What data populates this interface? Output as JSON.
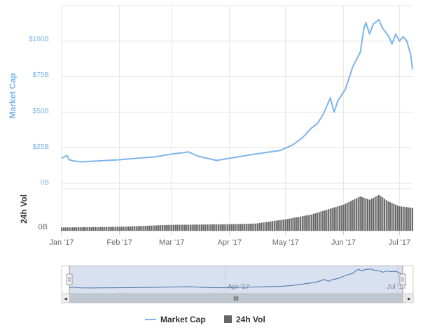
{
  "chart_data": {
    "type": "area",
    "title": "",
    "panes": {
      "market_cap": {
        "ylabel": "Market Cap",
        "yticks": [
          "0B",
          "$25B",
          "$50B",
          "$75B",
          "$100B"
        ],
        "ylim": [
          0,
          125
        ],
        "unit": "B USD",
        "color": "#7cb5ec"
      },
      "volume": {
        "ylabel": "24h Vol",
        "yticks": [
          "0B"
        ],
        "color": "#666666"
      }
    },
    "x_tick_labels": [
      "Jan '17",
      "Feb '17",
      "Mar '17",
      "Apr '17",
      "May '17",
      "Jun '17",
      "Jul '17"
    ],
    "x_tick_dates": [
      "2017-01-01",
      "2017-02-01",
      "2017-03-01",
      "2017-04-01",
      "2017-05-01",
      "2017-06-01",
      "2017-07-01"
    ],
    "xlim": [
      "2017-01-01",
      "2017-07-08"
    ],
    "series": [
      {
        "name": "Market Cap",
        "kind": "line",
        "points": [
          [
            "2017-01-01",
            17.5
          ],
          [
            "2017-01-04",
            19.5
          ],
          [
            "2017-01-05",
            16.5
          ],
          [
            "2017-01-08",
            15.5
          ],
          [
            "2017-01-12",
            15.0
          ],
          [
            "2017-01-18",
            15.5
          ],
          [
            "2017-01-25",
            16.0
          ],
          [
            "2017-02-01",
            16.5
          ],
          [
            "2017-02-10",
            17.5
          ],
          [
            "2017-02-20",
            18.5
          ],
          [
            "2017-03-01",
            20.5
          ],
          [
            "2017-03-10",
            22.0
          ],
          [
            "2017-03-15",
            19.0
          ],
          [
            "2017-03-20",
            17.5
          ],
          [
            "2017-03-25",
            16.0
          ],
          [
            "2017-04-01",
            17.5
          ],
          [
            "2017-04-10",
            19.5
          ],
          [
            "2017-04-20",
            21.5
          ],
          [
            "2017-04-28",
            23.0
          ],
          [
            "2017-05-05",
            27.0
          ],
          [
            "2017-05-10",
            32.0
          ],
          [
            "2017-05-15",
            39.0
          ],
          [
            "2017-05-18",
            42.0
          ],
          [
            "2017-05-21",
            48.0
          ],
          [
            "2017-05-25",
            60.0
          ],
          [
            "2017-05-27",
            50.0
          ],
          [
            "2017-05-29",
            58.0
          ],
          [
            "2017-06-02",
            66.0
          ],
          [
            "2017-06-06",
            82.0
          ],
          [
            "2017-06-10",
            92.0
          ],
          [
            "2017-06-12",
            109.0
          ],
          [
            "2017-06-13",
            113.0
          ],
          [
            "2017-06-15",
            105.0
          ],
          [
            "2017-06-17",
            112.0
          ],
          [
            "2017-06-20",
            115.0
          ],
          [
            "2017-06-22",
            109.0
          ],
          [
            "2017-06-25",
            104.0
          ],
          [
            "2017-06-27",
            98.0
          ],
          [
            "2017-06-29",
            105.0
          ],
          [
            "2017-07-01",
            100.0
          ],
          [
            "2017-07-03",
            103.0
          ],
          [
            "2017-07-05",
            100.0
          ],
          [
            "2017-07-06",
            95.0
          ],
          [
            "2017-07-07",
            91.0
          ],
          [
            "2017-07-08",
            80.0
          ]
        ]
      },
      {
        "name": "24h Vol",
        "kind": "column",
        "points": [
          [
            "2017-01-01",
            0.1
          ],
          [
            "2017-02-01",
            0.12
          ],
          [
            "2017-03-01",
            0.18
          ],
          [
            "2017-04-01",
            0.2
          ],
          [
            "2017-04-15",
            0.22
          ],
          [
            "2017-05-01",
            0.35
          ],
          [
            "2017-05-15",
            0.5
          ],
          [
            "2017-06-01",
            0.8
          ],
          [
            "2017-06-10",
            1.05
          ],
          [
            "2017-06-15",
            0.95
          ],
          [
            "2017-06-20",
            1.1
          ],
          [
            "2017-06-25",
            0.9
          ],
          [
            "2017-07-01",
            0.75
          ],
          [
            "2017-07-08",
            0.7
          ]
        ]
      }
    ],
    "navigator": {
      "tick_labels": [
        "Apr '17",
        "Jul '17"
      ],
      "tick_dates": [
        "2017-04-01",
        "2017-07-01"
      ]
    },
    "legend": {
      "placement": "bottom-center",
      "items": [
        "Market Cap",
        "24h Vol"
      ]
    },
    "grid": true
  },
  "ui": {
    "scrollbar_grip": "III",
    "scroll_left": "◂",
    "scroll_right": "▸"
  }
}
